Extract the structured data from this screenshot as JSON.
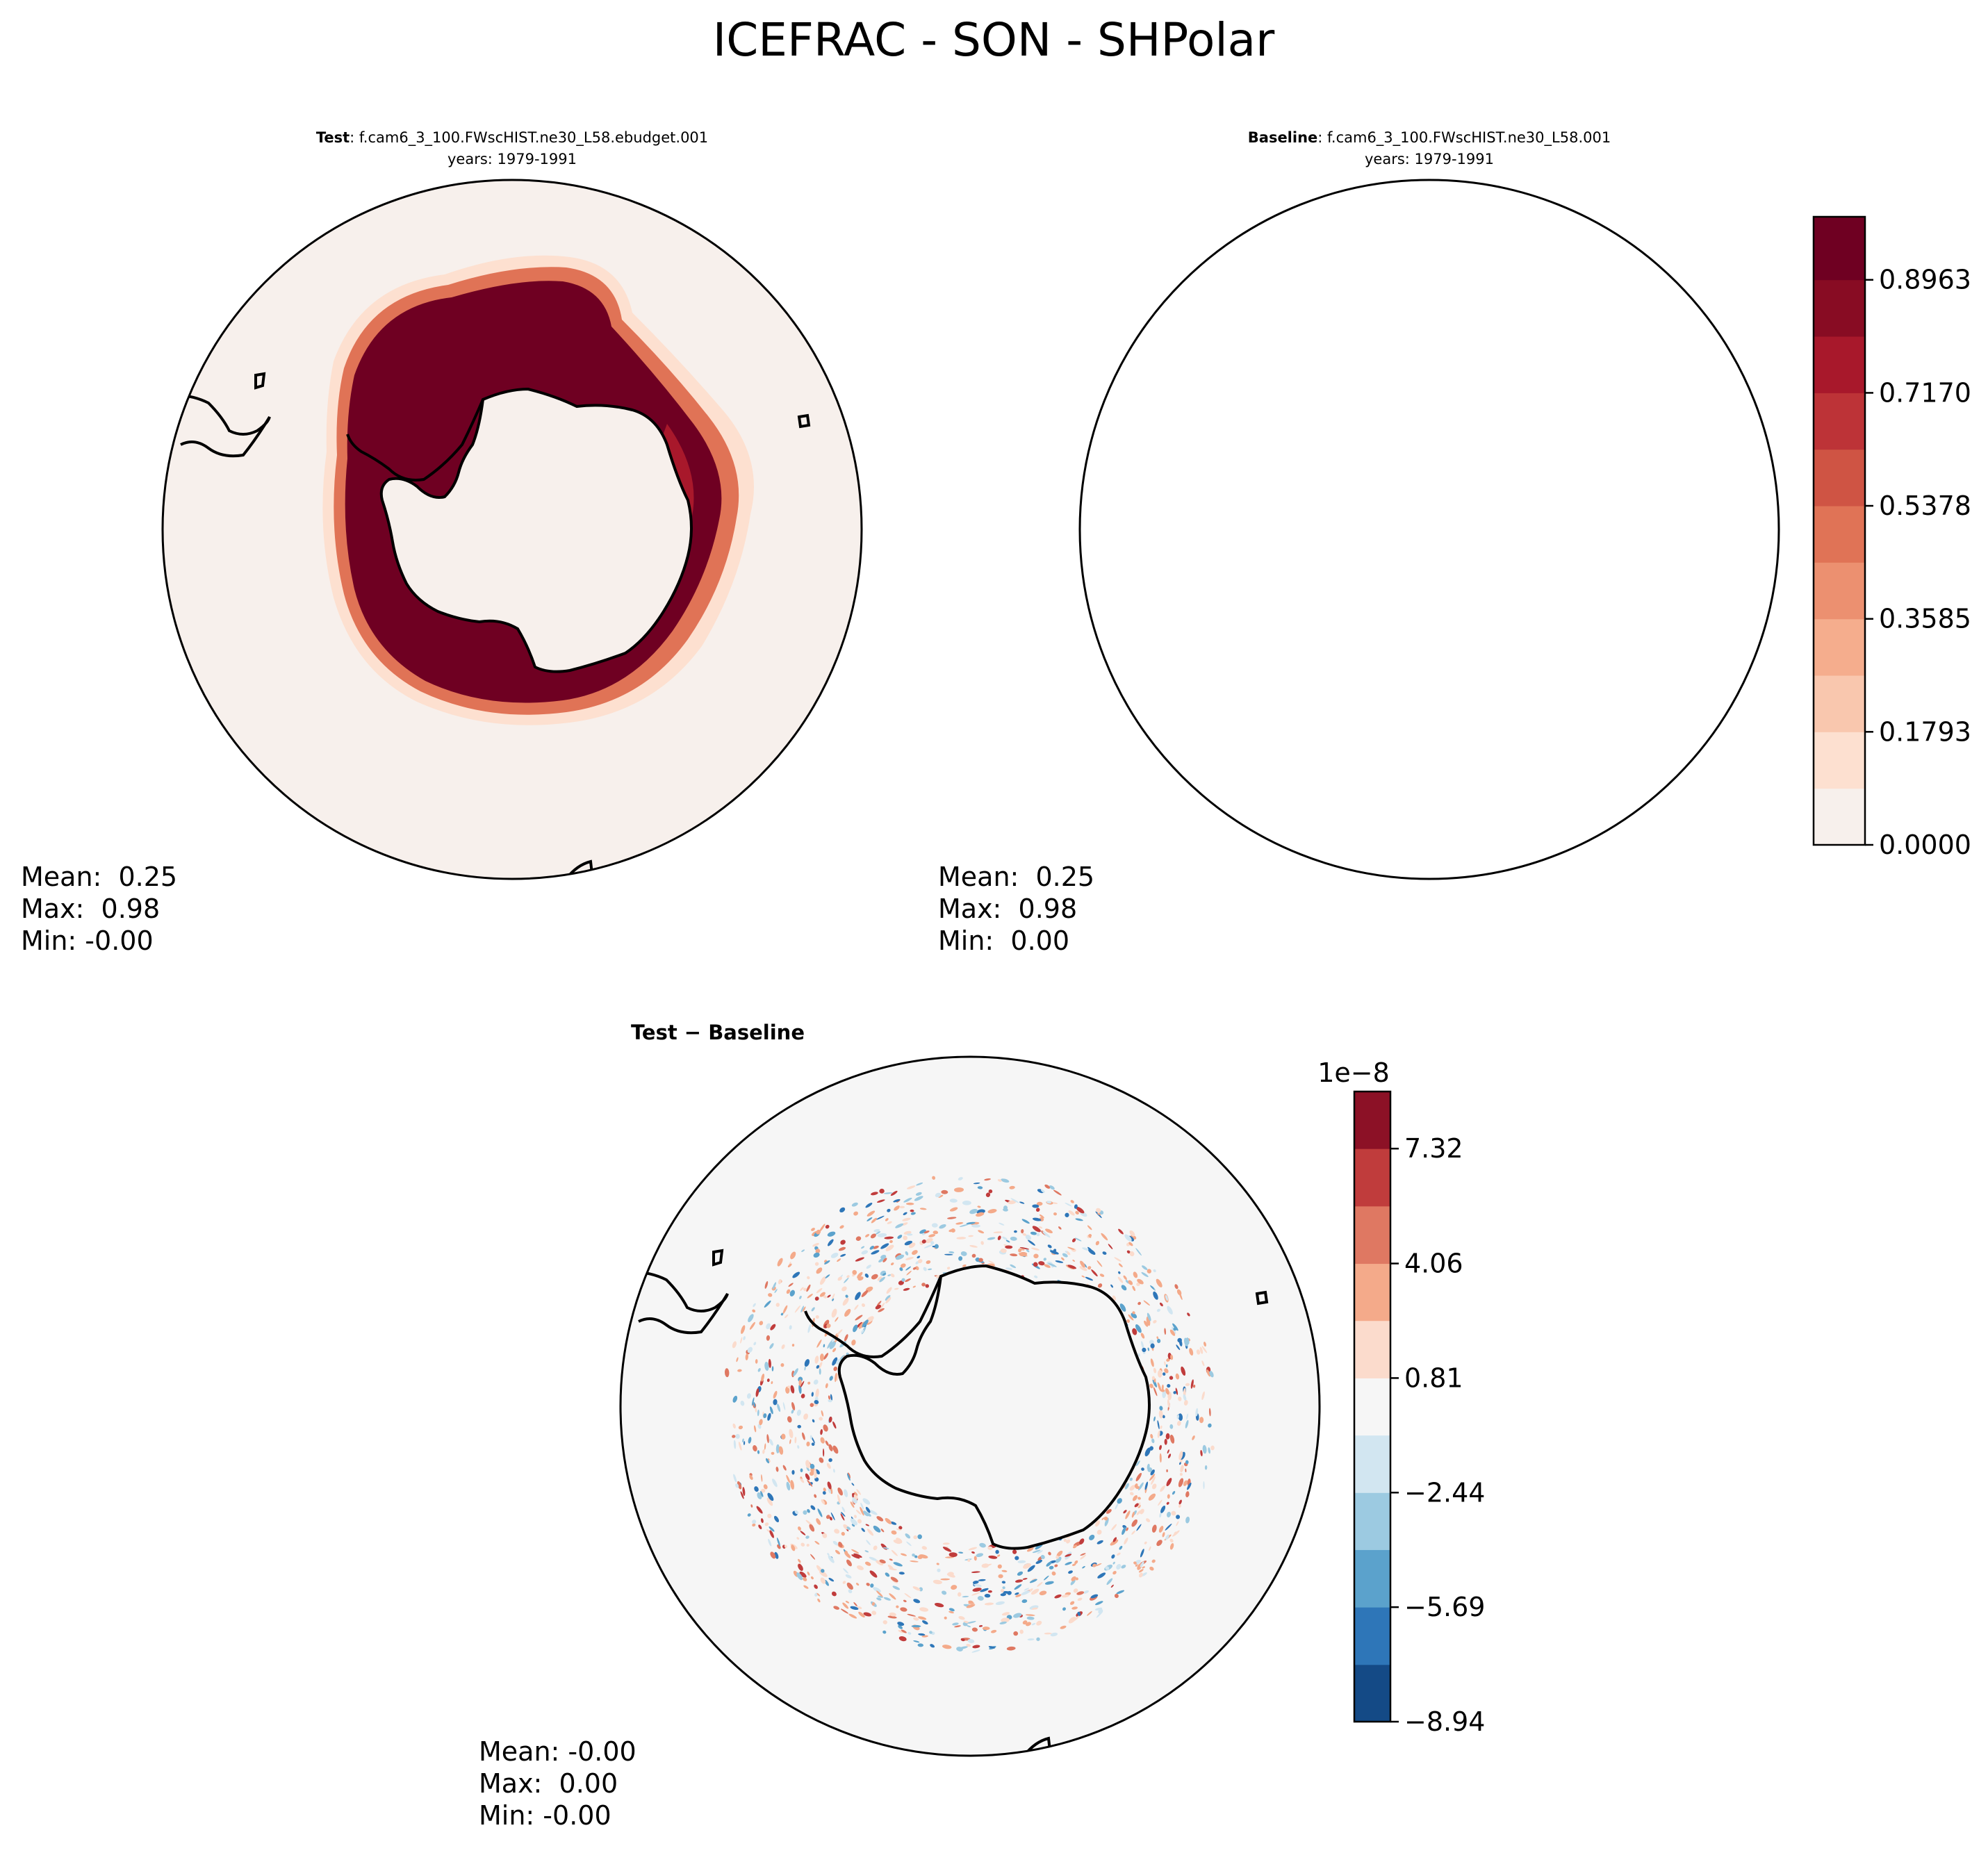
{
  "figure": {
    "title": "ICEFRAC - SON - SHPolar"
  },
  "chart_data": [
    {
      "type": "heatmap",
      "projection": "south-polar-stereographic",
      "title_bold": "Test",
      "title_rest": ": f.cam6_3_100.FWscHIST.ne30_L58.ebudget.001",
      "subtitle": "years: 1979-1991",
      "stats": {
        "mean": "Mean:  0.25",
        "max": "Max:  0.98",
        "min": "Min: -0.00"
      },
      "shared_colorbar": true
    },
    {
      "type": "heatmap",
      "projection": "south-polar-stereographic",
      "title_bold": "Baseline",
      "title_rest": ": f.cam6_3_100.FWscHIST.ne30_L58.001",
      "subtitle": "years: 1979-1991",
      "stats": {
        "mean": "Mean:  0.25",
        "max": "Max:  0.98",
        "min": "Min:  0.00"
      },
      "colorbar": {
        "range": [
          0.0,
          0.9963
        ],
        "levels": [
          0.0,
          0.0896,
          0.1793,
          0.2689,
          0.3585,
          0.4482,
          0.5378,
          0.6274,
          0.717,
          0.8067,
          0.8963,
          0.9963
        ],
        "colors": [
          "#f7f0ec",
          "#fde0d0",
          "#f9c7ae",
          "#f5ad8d",
          "#ec9070",
          "#e07356",
          "#cf5444",
          "#bd3337",
          "#a8182b",
          "#880c23",
          "#6f0022"
        ],
        "tick_values": [
          0.0,
          0.1793,
          0.3585,
          0.5378,
          0.717,
          0.8963
        ],
        "tick_labels": [
          "0.0000",
          "0.1793",
          "0.3585",
          "0.5378",
          "0.7170",
          "0.8963"
        ]
      }
    },
    {
      "type": "heatmap",
      "projection": "south-polar-stereographic",
      "title_bold": "Test − Baseline",
      "stats": {
        "mean": "Mean: -0.00",
        "max": "Max:  0.00",
        "min": "Min: -0.00"
      },
      "colorbar": {
        "scale_label": "1e−8",
        "range": [
          -8.94,
          8.94
        ],
        "levels": [
          -8.94,
          -7.32,
          -5.69,
          -4.06,
          -2.44,
          -0.81,
          0.81,
          2.44,
          4.06,
          5.69,
          7.32,
          8.94
        ],
        "colors": [
          "#144a86",
          "#2e76b8",
          "#5ba2cc",
          "#9ccae1",
          "#d2e6f1",
          "#f6f6f6",
          "#fbdbcc",
          "#f4aa8a",
          "#df7862",
          "#c03c3c",
          "#8c1126"
        ],
        "tick_values": [
          -8.94,
          -5.69,
          -2.44,
          0.81,
          4.06,
          7.32
        ],
        "tick_labels": [
          "−8.94",
          "−5.69",
          "−2.44",
          "0.81",
          "4.06",
          "7.32"
        ]
      }
    }
  ]
}
